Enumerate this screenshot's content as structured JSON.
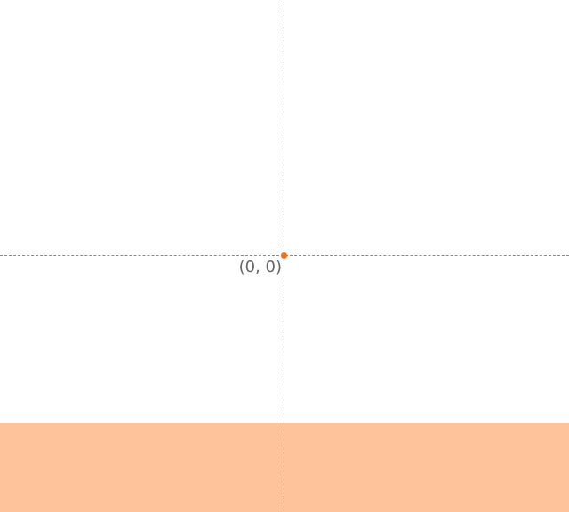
{
  "colors": {
    "background": "#ffffff",
    "axis": "#8a8a8a",
    "origin_marker": "#f07020",
    "bottom_panel": "#ffc39b",
    "label_text": "#666666"
  },
  "icons": {
    "origin_marker": "origin-dot-icon"
  },
  "coordinate_readout": {
    "text": "(0, 0)"
  }
}
